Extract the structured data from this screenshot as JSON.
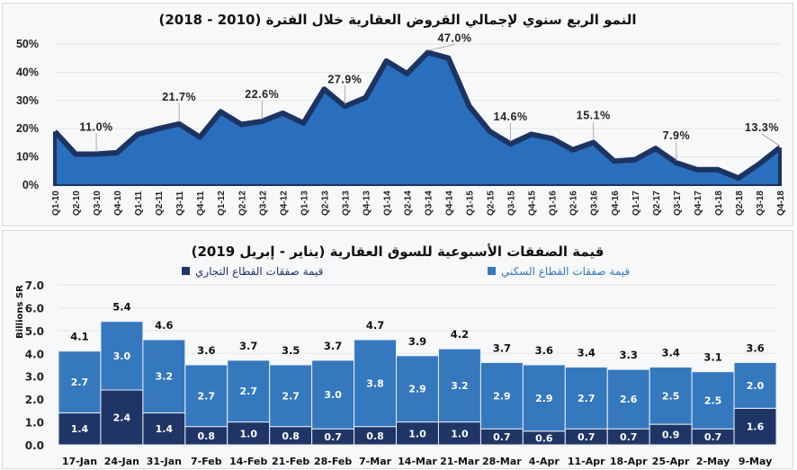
{
  "chart_data": [
    {
      "type": "area",
      "title": "النمو الربع سنوي لإجمالي القروض العقارية خلال الفترة (2010 - 2018)",
      "ylim": [
        0,
        50
      ],
      "yticks": [
        "0%",
        "10%",
        "20%",
        "30%",
        "40%",
        "50%"
      ],
      "grid": true,
      "colors": {
        "fill": "#2a6fbd",
        "line": "#1c3462"
      },
      "categories": [
        "Q1-10",
        "Q2-10",
        "Q3-10",
        "Q4-10",
        "Q1-11",
        "Q2-11",
        "Q3-11",
        "Q4-11",
        "Q1-12",
        "Q2-12",
        "Q3-12",
        "Q4-12",
        "Q1-13",
        "Q2-13",
        "Q3-13",
        "Q4-13",
        "Q1-14",
        "Q2-14",
        "Q3-14",
        "Q4-14",
        "Q1-15",
        "Q2-15",
        "Q3-15",
        "Q4-15",
        "Q1-16",
        "Q2-16",
        "Q3-16",
        "Q4-16",
        "Q1-17",
        "Q2-17",
        "Q3-17",
        "Q4-17",
        "Q1-18",
        "Q2-18",
        "Q3-18",
        "Q4-18"
      ],
      "values": [
        19,
        11,
        11.0,
        11.5,
        18,
        20,
        21.7,
        17,
        26,
        21.5,
        22.6,
        25.5,
        22,
        34,
        27.9,
        31,
        44,
        39.5,
        47.0,
        45,
        28,
        19,
        14.6,
        18,
        16.5,
        12.5,
        15.1,
        8.5,
        9,
        13,
        7.9,
        5.5,
        5.5,
        2.5,
        7.5,
        13.3
      ],
      "annotations": [
        {
          "category": "Q3-10",
          "label": "11.0%"
        },
        {
          "category": "Q3-11",
          "label": "21.7%"
        },
        {
          "category": "Q3-12",
          "label": "22.6%"
        },
        {
          "category": "Q3-13",
          "label": "27.9%"
        },
        {
          "category": "Q3-14",
          "label": "47.0%"
        },
        {
          "category": "Q3-15",
          "label": "14.6%"
        },
        {
          "category": "Q3-16",
          "label": "15.1%"
        },
        {
          "category": "Q3-17",
          "label": "7.9%"
        },
        {
          "category": "Q4-18",
          "label": "13.3%"
        }
      ]
    },
    {
      "type": "bar",
      "stacked": true,
      "title": "قيمة الصفقات الأسبوعية للسوق العقارية (يناير - إبريل 2019)",
      "ylabel": "Billions SR",
      "ylim": [
        0,
        7
      ],
      "yticks": [
        "0.0",
        "1.0",
        "2.0",
        "3.0",
        "4.0",
        "5.0",
        "6.0",
        "7.0"
      ],
      "grid": true,
      "legend_placement": "top",
      "categories": [
        "17-Jan",
        "24-Jan",
        "31-Jan",
        "7-Feb",
        "14-Feb",
        "21-Feb",
        "28-Feb",
        "7-Mar",
        "14-Mar",
        "21-Mar",
        "28-Mar",
        "4-Apr",
        "11-Apr",
        "18-Apr",
        "25-Apr",
        "2-May",
        "9-May"
      ],
      "series": [
        {
          "name": "قيمة صفقات القطاع التجاري",
          "color": "#1f3566",
          "values": [
            1.4,
            2.4,
            1.4,
            0.8,
            1.0,
            0.8,
            0.7,
            0.8,
            1.0,
            1.0,
            0.7,
            0.6,
            0.7,
            0.7,
            0.9,
            0.7,
            1.6
          ]
        },
        {
          "name": "قيمة صفقات القطاع السكني",
          "color": "#3578bd",
          "values": [
            2.7,
            3.0,
            3.2,
            2.7,
            2.7,
            2.7,
            3.0,
            3.8,
            2.9,
            3.2,
            2.9,
            2.9,
            2.7,
            2.6,
            2.5,
            2.5,
            2.0
          ]
        }
      ],
      "totals": [
        4.1,
        5.4,
        4.6,
        3.6,
        3.7,
        3.5,
        3.7,
        4.7,
        3.9,
        4.2,
        3.7,
        3.6,
        3.4,
        3.3,
        3.4,
        3.1,
        3.6
      ]
    }
  ]
}
